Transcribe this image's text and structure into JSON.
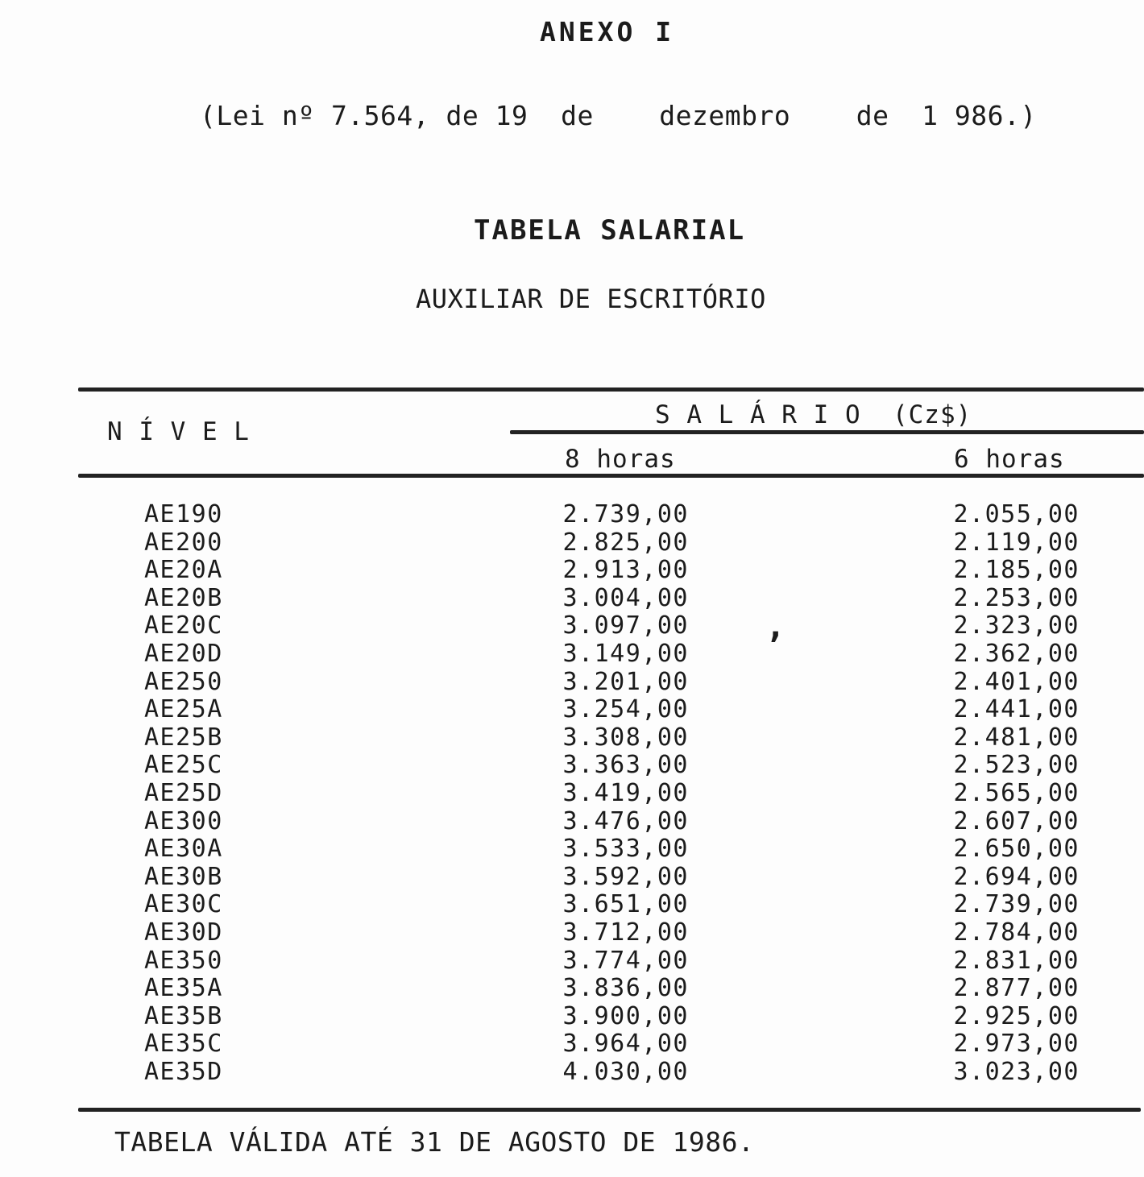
{
  "page": {
    "annex": "ANEXO I",
    "law_line": "(Lei nº 7.564, de 19  de    dezembro    de  1 986.)",
    "title": "TABELA SALARIAL",
    "subtitle": "AUXILIAR DE ESCRITÓRIO",
    "footer": "TABELA VÁLIDA ATÉ 31 DE AGOSTO DE 1986.",
    "ink_color": "#1b1b1b",
    "paper_color": "#fdfdfd"
  },
  "table": {
    "headers": {
      "nivel": "N Í V E L",
      "salario_group": "S A L Á R I O  (Cz$)",
      "h8": "8 horas",
      "h6": "6 horas"
    },
    "rows": [
      {
        "nivel": "AE190",
        "h8": "2.739,00",
        "h6": "2.055,00"
      },
      {
        "nivel": "AE200",
        "h8": "2.825,00",
        "h6": "2.119,00"
      },
      {
        "nivel": "AE20A",
        "h8": "2.913,00",
        "h6": "2.185,00"
      },
      {
        "nivel": "AE20B",
        "h8": "3.004,00",
        "h6": "2.253,00"
      },
      {
        "nivel": "AE20C",
        "h8": "3.097,00",
        "h6": "2.323,00"
      },
      {
        "nivel": "AE20D",
        "h8": "3.149,00",
        "h6": "2.362,00"
      },
      {
        "nivel": "AE250",
        "h8": "3.201,00",
        "h6": "2.401,00"
      },
      {
        "nivel": "AE25A",
        "h8": "3.254,00",
        "h6": "2.441,00"
      },
      {
        "nivel": "AE25B",
        "h8": "3.308,00",
        "h6": "2.481,00"
      },
      {
        "nivel": "AE25C",
        "h8": "3.363,00",
        "h6": "2.523,00"
      },
      {
        "nivel": "AE25D",
        "h8": "3.419,00",
        "h6": "2.565,00"
      },
      {
        "nivel": "AE300",
        "h8": "3.476,00",
        "h6": "2.607,00"
      },
      {
        "nivel": "AE30A",
        "h8": "3.533,00",
        "h6": "2.650,00"
      },
      {
        "nivel": "AE30B",
        "h8": "3.592,00",
        "h6": "2.694,00"
      },
      {
        "nivel": "AE30C",
        "h8": "3.651,00",
        "h6": "2.739,00"
      },
      {
        "nivel": "AE30D",
        "h8": "3.712,00",
        "h6": "2.784,00"
      },
      {
        "nivel": "AE350",
        "h8": "3.774,00",
        "h6": "2.831,00"
      },
      {
        "nivel": "AE35A",
        "h8": "3.836,00",
        "h6": "2.877,00"
      },
      {
        "nivel": "AE35B",
        "h8": "3.900,00",
        "h6": "2.925,00"
      },
      {
        "nivel": "AE35C",
        "h8": "3.964,00",
        "h6": "2.973,00"
      },
      {
        "nivel": "AE35D",
        "h8": "4.030,00",
        "h6": "3.023,00"
      }
    ]
  },
  "artifact": {
    "stray_comma": ","
  }
}
